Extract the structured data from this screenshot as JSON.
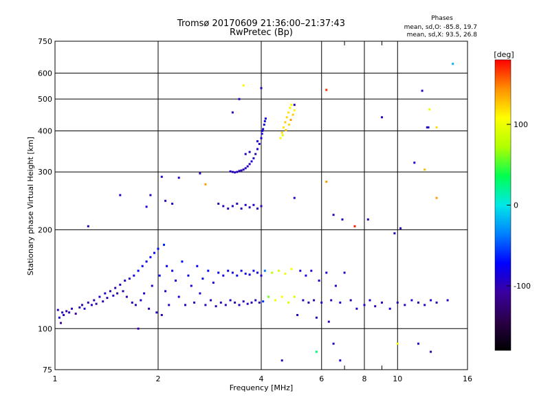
{
  "chart_data": {
    "type": "scatter",
    "title": "Tromsø 20170609 21:36:00–21:37:43",
    "subtitle": "RwPretec (Bp)",
    "xlabel": "Frequency [MHz]",
    "ylabel": "Stationary phase Virtual Height [km]",
    "x_scale": "log",
    "y_scale": "log",
    "xlim": [
      1,
      16
    ],
    "ylim": [
      75,
      750
    ],
    "x_ticks": [
      1,
      2,
      4,
      6,
      8,
      10,
      16
    ],
    "x_tick_labels": [
      "1",
      "2",
      "4",
      "6",
      "8",
      "10",
      "16"
    ],
    "x_minor_ticks": [
      7,
      9
    ],
    "y_ticks": [
      75,
      100,
      200,
      300,
      400,
      500,
      600,
      750
    ],
    "y_tick_labels": [
      "75",
      "100",
      "200",
      "300",
      "400",
      "500",
      "600",
      "750"
    ],
    "grid": true,
    "stats": {
      "heading": "Phases",
      "line_o": "mean, sd,O: -85.8, 19.7",
      "line_x": "mean, sd,X:  93.5, 26.8"
    },
    "colorbar": {
      "label": "[deg]",
      "range": [
        -180,
        180
      ],
      "ticks": [
        100,
        0,
        -100
      ],
      "tick_labels": [
        "100",
        "0",
        "-100"
      ],
      "colormap": [
        "#000000",
        "#2a0048",
        "#3a00a0",
        "#0000ff",
        "#0080ff",
        "#00e8e8",
        "#00ff50",
        "#b0ff00",
        "#ffff00",
        "#ff9000",
        "#ff0000"
      ]
    },
    "series": [
      {
        "values": [
          [
            1.02,
            114,
            -100
          ],
          [
            1.03,
            108,
            -90
          ],
          [
            1.04,
            104,
            -110
          ],
          [
            1.05,
            112,
            -95
          ],
          [
            1.06,
            110,
            -100
          ],
          [
            1.08,
            113,
            -105
          ],
          [
            1.1,
            112,
            -95
          ],
          [
            1.12,
            115,
            -100
          ],
          [
            1.15,
            111,
            -110
          ],
          [
            1.18,
            116,
            -95
          ],
          [
            1.2,
            118,
            -100
          ],
          [
            1.22,
            115,
            -90
          ],
          [
            1.25,
            120,
            -105
          ],
          [
            1.28,
            118,
            -95
          ],
          [
            1.3,
            122,
            -100
          ],
          [
            1.32,
            119,
            -110
          ],
          [
            1.35,
            125,
            -95
          ],
          [
            1.38,
            121,
            -100
          ],
          [
            1.4,
            128,
            -90
          ],
          [
            1.42,
            124,
            -105
          ],
          [
            1.45,
            130,
            -100
          ],
          [
            1.48,
            126,
            -95
          ],
          [
            1.5,
            133,
            -100
          ],
          [
            1.52,
            128,
            -110
          ],
          [
            1.55,
            136,
            -95
          ],
          [
            1.58,
            130,
            -100
          ],
          [
            1.6,
            140,
            -90
          ],
          [
            1.62,
            125,
            -105
          ],
          [
            1.65,
            142,
            -100
          ],
          [
            1.68,
            120,
            -95
          ],
          [
            1.7,
            145,
            -85
          ],
          [
            1.72,
            118,
            -100
          ],
          [
            1.75,
            150,
            -80
          ],
          [
            1.78,
            122,
            -95
          ],
          [
            1.8,
            155,
            -75
          ],
          [
            1.82,
            128,
            -90
          ],
          [
            1.85,
            160,
            -80
          ],
          [
            1.88,
            115,
            -100
          ],
          [
            1.9,
            165,
            -75
          ],
          [
            1.92,
            135,
            -85
          ],
          [
            1.95,
            170,
            -70
          ],
          [
            1.98,
            112,
            -95
          ],
          [
            2.0,
            175,
            -70
          ],
          [
            2.02,
            145,
            -80
          ],
          [
            2.05,
            110,
            -100
          ],
          [
            2.08,
            180,
            -65
          ],
          [
            2.1,
            130,
            -85
          ],
          [
            2.12,
            155,
            -75
          ],
          [
            2.15,
            118,
            -95
          ],
          [
            2.2,
            150,
            -80
          ],
          [
            2.25,
            140,
            -85
          ],
          [
            2.3,
            125,
            -90
          ],
          [
            2.35,
            160,
            -70
          ],
          [
            2.4,
            118,
            -95
          ],
          [
            2.45,
            145,
            -80
          ],
          [
            2.5,
            135,
            -85
          ],
          [
            2.55,
            120,
            -95
          ],
          [
            2.6,
            155,
            -75
          ],
          [
            2.65,
            128,
            -90
          ],
          [
            2.7,
            142,
            -80
          ],
          [
            2.75,
            118,
            -100
          ],
          [
            2.8,
            150,
            -75
          ],
          [
            2.85,
            122,
            -90
          ],
          [
            2.9,
            138,
            -85
          ],
          [
            2.95,
            117,
            -100
          ],
          [
            3.0,
            148,
            -80
          ],
          [
            3.05,
            120,
            -95
          ],
          [
            3.1,
            145,
            -85
          ],
          [
            3.15,
            118,
            -100
          ],
          [
            3.2,
            150,
            -80
          ],
          [
            3.25,
            122,
            -95
          ],
          [
            3.3,
            148,
            -85
          ],
          [
            3.35,
            120,
            -100
          ],
          [
            3.4,
            145,
            -80
          ],
          [
            3.45,
            118,
            -95
          ],
          [
            3.5,
            150,
            -85
          ],
          [
            3.55,
            121,
            -100
          ],
          [
            3.6,
            147,
            -80
          ],
          [
            3.65,
            119,
            -95
          ],
          [
            3.7,
            146,
            -85
          ],
          [
            3.75,
            120,
            -100
          ],
          [
            3.8,
            150,
            -80
          ],
          [
            3.85,
            122,
            -95
          ],
          [
            3.9,
            148,
            -85
          ],
          [
            3.95,
            120,
            -100
          ],
          [
            4.0,
            145,
            -90
          ],
          [
            4.05,
            121,
            -60
          ],
          [
            4.1,
            150,
            -40
          ],
          [
            4.2,
            125,
            60
          ],
          [
            4.3,
            148,
            80
          ],
          [
            4.4,
            122,
            100
          ],
          [
            4.5,
            150,
            90
          ],
          [
            4.6,
            125,
            110
          ],
          [
            4.7,
            147,
            100
          ],
          [
            4.8,
            120,
            95
          ],
          [
            4.9,
            152,
            105
          ],
          [
            5.0,
            125,
            90
          ],
          [
            5.1,
            110,
            -95
          ],
          [
            5.2,
            150,
            -90
          ],
          [
            5.3,
            122,
            -95
          ],
          [
            5.4,
            145,
            -85
          ],
          [
            5.5,
            120,
            -100
          ],
          [
            5.6,
            150,
            -90
          ],
          [
            5.7,
            122,
            -95
          ],
          [
            5.8,
            108,
            -100
          ],
          [
            5.9,
            140,
            -85
          ],
          [
            6.0,
            120,
            -95
          ],
          [
            6.2,
            148,
            -90
          ],
          [
            6.4,
            122,
            -100
          ],
          [
            6.6,
            135,
            -95
          ],
          [
            6.8,
            120,
            -90
          ],
          [
            7.0,
            148,
            -95
          ],
          [
            7.3,
            122,
            -100
          ],
          [
            7.6,
            115,
            -95
          ],
          [
            8.0,
            118,
            -90
          ],
          [
            8.3,
            122,
            -95
          ],
          [
            8.6,
            117,
            -100
          ],
          [
            9.0,
            120,
            -95
          ],
          [
            9.5,
            115,
            -90
          ],
          [
            10.0,
            120,
            -100
          ],
          [
            10.5,
            118,
            -95
          ],
          [
            11.0,
            122,
            -90
          ],
          [
            11.5,
            120,
            -100
          ],
          [
            12.0,
            118,
            -95
          ],
          [
            12.5,
            122,
            -90
          ],
          [
            13.0,
            120,
            -100
          ],
          [
            14.0,
            122,
            -95
          ]
        ]
      },
      {
        "values": [
          [
            3.25,
            301,
            -100
          ],
          [
            3.3,
            300,
            -95
          ],
          [
            3.35,
            299,
            -100
          ],
          [
            3.4,
            300,
            -90
          ],
          [
            3.45,
            302,
            -100
          ],
          [
            3.5,
            303,
            -95
          ],
          [
            3.55,
            305,
            -100
          ],
          [
            3.6,
            308,
            -90
          ],
          [
            3.65,
            312,
            -95
          ],
          [
            3.7,
            317,
            -100
          ],
          [
            3.75,
            323,
            -90
          ],
          [
            3.8,
            330,
            -95
          ],
          [
            3.85,
            340,
            -100
          ],
          [
            3.9,
            352,
            -90
          ],
          [
            3.95,
            365,
            -95
          ],
          [
            4.0,
            380,
            -90
          ],
          [
            4.02,
            392,
            -85
          ],
          [
            4.05,
            405,
            -90
          ],
          [
            4.08,
            418,
            -85
          ],
          [
            4.1,
            428,
            -80
          ],
          [
            4.12,
            436,
            -85
          ],
          [
            3.6,
            340,
            -100
          ],
          [
            3.7,
            345,
            -95
          ],
          [
            3.9,
            372,
            -90
          ],
          [
            4.03,
            400,
            -85
          ]
        ]
      },
      {
        "values": [
          [
            4.55,
            380,
            110
          ],
          [
            4.6,
            395,
            120
          ],
          [
            4.65,
            410,
            115
          ],
          [
            4.7,
            425,
            125
          ],
          [
            4.75,
            440,
            120
          ],
          [
            4.8,
            455,
            115
          ],
          [
            4.85,
            470,
            110
          ],
          [
            4.9,
            480,
            105
          ],
          [
            4.62,
            388,
            95
          ],
          [
            4.72,
            402,
            130
          ],
          [
            4.82,
            418,
            120
          ],
          [
            4.88,
            432,
            140
          ],
          [
            4.95,
            448,
            125
          ],
          [
            5.0,
            462,
            110
          ]
        ]
      },
      {
        "values": [
          [
            3.0,
            240,
            -100
          ],
          [
            3.1,
            236,
            -95
          ],
          [
            3.2,
            232,
            -100
          ],
          [
            3.3,
            236,
            -90
          ],
          [
            3.4,
            240,
            -95
          ],
          [
            3.5,
            232,
            -100
          ],
          [
            3.6,
            238,
            -95
          ],
          [
            3.7,
            234,
            -100
          ],
          [
            3.8,
            238,
            -90
          ],
          [
            3.9,
            232,
            -95
          ],
          [
            4.0,
            236,
            -100
          ],
          [
            5.0,
            250,
            -95
          ],
          [
            6.2,
            280,
            140
          ],
          [
            6.5,
            222,
            -100
          ],
          [
            7.5,
            205,
            175
          ],
          [
            6.9,
            215,
            -95
          ],
          [
            8.2,
            215,
            -100
          ],
          [
            9.8,
            195,
            -95
          ],
          [
            10.2,
            202,
            -100
          ],
          [
            11.2,
            320,
            -90
          ],
          [
            12.0,
            305,
            130
          ],
          [
            13.0,
            250,
            140
          ]
        ]
      },
      {
        "values": [
          [
            3.3,
            455,
            -100
          ],
          [
            3.45,
            500,
            -95
          ],
          [
            3.55,
            550,
            110
          ],
          [
            4.0,
            540,
            -100
          ],
          [
            5.0,
            480,
            -95
          ],
          [
            6.2,
            533,
            170
          ],
          [
            9.0,
            440,
            -100
          ],
          [
            11.8,
            530,
            -95
          ],
          [
            12.2,
            410,
            -100
          ],
          [
            12.4,
            465,
            100
          ],
          [
            12.3,
            410,
            -90
          ],
          [
            13.0,
            410,
            120
          ],
          [
            14.5,
            640,
            -20
          ]
        ]
      },
      {
        "values": [
          [
            1.25,
            205,
            -100
          ],
          [
            1.55,
            255,
            -95
          ],
          [
            1.85,
            235,
            -90
          ],
          [
            1.9,
            255,
            -100
          ],
          [
            2.05,
            290,
            -95
          ],
          [
            2.1,
            245,
            -100
          ],
          [
            2.2,
            240,
            -90
          ],
          [
            2.65,
            297,
            -100
          ],
          [
            2.75,
            275,
            140
          ],
          [
            2.3,
            288,
            -95
          ],
          [
            6.3,
            105,
            -100
          ],
          [
            6.5,
            90,
            -95
          ],
          [
            4.6,
            80,
            -100
          ],
          [
            5.8,
            85,
            30
          ],
          [
            6.8,
            80,
            -90
          ],
          [
            10.0,
            90,
            100
          ],
          [
            11.5,
            90,
            -95
          ],
          [
            12.5,
            85,
            -100
          ],
          [
            1.75,
            100,
            -105
          ]
        ]
      }
    ]
  }
}
